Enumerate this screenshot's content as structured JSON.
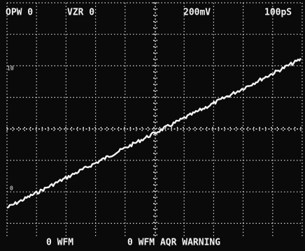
{
  "header": {
    "channel_a": "OPW 0",
    "channel_b": "VZR 0",
    "volts_per_div": "200mV",
    "time_per_div": "100pS"
  },
  "markers": {
    "upper": "10",
    "lower": "0"
  },
  "footer": {
    "left": "0 WFM",
    "right": "0 WFM AQR WARNING"
  }
}
